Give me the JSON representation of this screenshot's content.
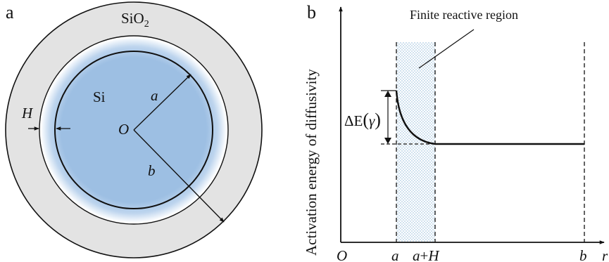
{
  "panel_a": {
    "letter": "a",
    "outer_label": "SiO",
    "outer_label_sub": "2",
    "inner_label": "Si",
    "center_label": "O",
    "radius_a_label": "a",
    "radius_b_label": "b",
    "thickness_label": "H",
    "colors": {
      "oxide": "#e3e3e3",
      "silicon": "#9dbfe3",
      "line": "#111111"
    }
  },
  "panel_b": {
    "letter": "b",
    "region_label": "Finite reactive region",
    "y_axis_title": "Activation energy of diffusivity",
    "delta_label_prefix": "ΔE",
    "delta_label_arg": "γ",
    "x_ticks": {
      "origin": "O",
      "a": "a",
      "a_plus_h": "a+H",
      "b": "b",
      "axis_end": "r"
    },
    "colors": {
      "region_dots": "#8ab4d6",
      "line": "#111111"
    }
  }
}
